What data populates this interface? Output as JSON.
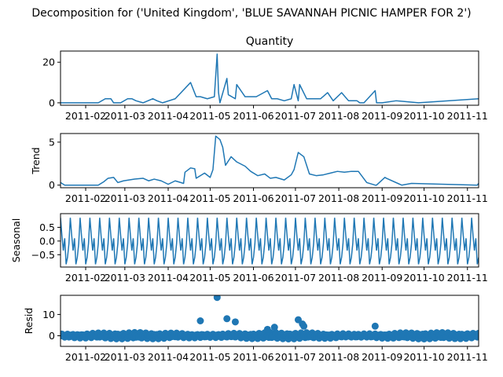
{
  "suptitle": "Decomposition for ('United Kingdom', 'BLUE SAVANNAH PICNIC HAMPER FOR 2')",
  "colors": {
    "line": "#1f77b4",
    "axis": "#000000",
    "background": "#ffffff"
  },
  "x_tick_labels": [
    "2011-02",
    "2011-03",
    "2011-04",
    "2011-05",
    "2011-06",
    "2011-07",
    "2011-08",
    "2011-09",
    "2011-10",
    "2011-11"
  ],
  "x_range": [
    "2011-01-14",
    "2011-11-09"
  ],
  "chart_data": [
    {
      "type": "line",
      "title": "Quantity",
      "ylabel": "",
      "ylim": [
        -1.2,
        25.5
      ],
      "y_ticks": [
        0,
        20
      ],
      "y_tick_labels": [
        "0",
        "20"
      ],
      "series": [
        {
          "x": [
            "2011-01-14",
            "2011-02-10",
            "2011-02-15",
            "2011-02-19",
            "2011-02-21",
            "2011-02-26",
            "2011-03-03",
            "2011-03-06",
            "2011-03-09",
            "2011-03-14",
            "2011-03-21",
            "2011-03-24",
            "2011-03-28",
            "2011-04-06",
            "2011-04-17",
            "2011-04-21",
            "2011-04-24",
            "2011-04-29",
            "2011-05-04",
            "2011-05-06",
            "2011-05-07",
            "2011-05-08",
            "2011-05-13",
            "2011-05-14",
            "2011-05-19",
            "2011-05-20",
            "2011-05-26",
            "2011-06-03",
            "2011-06-11",
            "2011-06-14",
            "2011-06-18",
            "2011-06-23",
            "2011-06-28",
            "2011-06-30",
            "2011-07-03",
            "2011-07-04",
            "2011-07-09",
            "2011-07-14",
            "2011-07-19",
            "2011-07-24",
            "2011-07-28",
            "2011-08-03",
            "2011-08-08",
            "2011-08-14",
            "2011-08-16",
            "2011-08-19",
            "2011-08-27",
            "2011-08-28",
            "2011-09-01",
            "2011-09-11",
            "2011-09-27",
            "2011-11-09"
          ],
          "y": [
            0,
            0,
            2,
            2,
            0,
            0,
            2,
            2,
            1,
            0,
            2,
            1,
            0,
            2,
            10,
            3,
            3,
            2,
            3,
            24,
            5,
            0,
            12,
            4,
            2,
            9,
            3,
            3,
            6,
            2,
            2,
            1,
            2,
            9,
            1,
            9,
            2,
            2,
            2,
            5,
            1,
            5,
            1,
            1,
            0,
            0,
            6,
            0,
            0,
            1,
            0,
            2
          ]
        }
      ]
    },
    {
      "type": "line",
      "title": "",
      "ylabel": "Trend",
      "ylim": [
        -0.3,
        6.0
      ],
      "y_ticks": [
        0,
        5
      ],
      "y_tick_labels": [
        "0",
        "5"
      ],
      "series": [
        {
          "x": [
            "2011-01-14",
            "2011-01-17",
            "2011-02-10",
            "2011-02-14",
            "2011-02-17",
            "2011-02-21",
            "2011-02-24",
            "2011-02-28",
            "2011-03-04",
            "2011-03-08",
            "2011-03-14",
            "2011-03-18",
            "2011-03-22",
            "2011-03-27",
            "2011-04-01",
            "2011-04-06",
            "2011-04-12",
            "2011-04-13",
            "2011-04-17",
            "2011-04-20",
            "2011-04-21",
            "2011-04-27",
            "2011-05-01",
            "2011-05-03",
            "2011-05-05",
            "2011-05-08",
            "2011-05-10",
            "2011-05-12",
            "2011-05-16",
            "2011-05-20",
            "2011-05-26",
            "2011-05-30",
            "2011-06-04",
            "2011-06-09",
            "2011-06-13",
            "2011-06-17",
            "2011-06-23",
            "2011-06-28",
            "2011-06-30",
            "2011-07-03",
            "2011-07-07",
            "2011-07-11",
            "2011-07-16",
            "2011-07-21",
            "2011-07-26",
            "2011-07-31",
            "2011-08-05",
            "2011-08-10",
            "2011-08-15",
            "2011-08-21",
            "2011-08-27",
            "2011-08-28",
            "2011-09-03",
            "2011-09-04",
            "2011-09-15",
            "2011-09-22",
            "2011-11-08",
            "2011-11-09"
          ],
          "y": [
            0.3,
            0,
            0,
            0.4,
            0.8,
            0.9,
            0.3,
            0.5,
            0.6,
            0.7,
            0.8,
            0.5,
            0.7,
            0.5,
            0.1,
            0.5,
            0.2,
            1.5,
            2.0,
            1.9,
            0.8,
            1.4,
            0.9,
            1.8,
            5.7,
            5.3,
            4.4,
            2.3,
            3.3,
            2.7,
            2.2,
            1.6,
            1.1,
            1.3,
            0.8,
            0.9,
            0.6,
            1.2,
            1.8,
            3.8,
            3.3,
            1.3,
            1.1,
            1.2,
            1.4,
            1.6,
            1.5,
            1.6,
            1.6,
            0.3,
            0,
            0,
            0.9,
            0.8,
            0,
            0.2,
            0,
            0.2
          ]
        }
      ]
    },
    {
      "type": "line",
      "title": "",
      "ylabel": "Seasonal",
      "ylim": [
        -0.95,
        1.0
      ],
      "y_ticks": [
        0.5,
        0.0,
        -0.5
      ],
      "y_tick_labels": [
        "0.5",
        "0.0",
        "−0.5"
      ],
      "series": [
        {
          "period_days": 7,
          "pattern": [
            0.85,
            0.2,
            -0.35,
            0.1,
            -0.85,
            -0.6,
            -0.1
          ],
          "start": "2011-01-14",
          "end": "2011-11-09"
        }
      ]
    },
    {
      "type": "scatter",
      "title": "",
      "ylabel": "Resid",
      "ylim": [
        -5,
        19
      ],
      "y_ticks": [
        0,
        10
      ],
      "y_tick_labels": [
        "0",
        "10"
      ],
      "series": [
        {
          "x": [
            "2011-04-24",
            "2011-05-06",
            "2011-05-13",
            "2011-05-19",
            "2011-06-11",
            "2011-06-16",
            "2011-07-03",
            "2011-07-06",
            "2011-07-07",
            "2011-08-27"
          ],
          "y": [
            7,
            18,
            8,
            6.5,
            3,
            4,
            7.5,
            5.5,
            4.5,
            4.5
          ],
          "baseline_noise_amplitude": 1.5,
          "baseline_start": "2011-01-14",
          "baseline_end": "2011-11-09"
        }
      ]
    }
  ]
}
